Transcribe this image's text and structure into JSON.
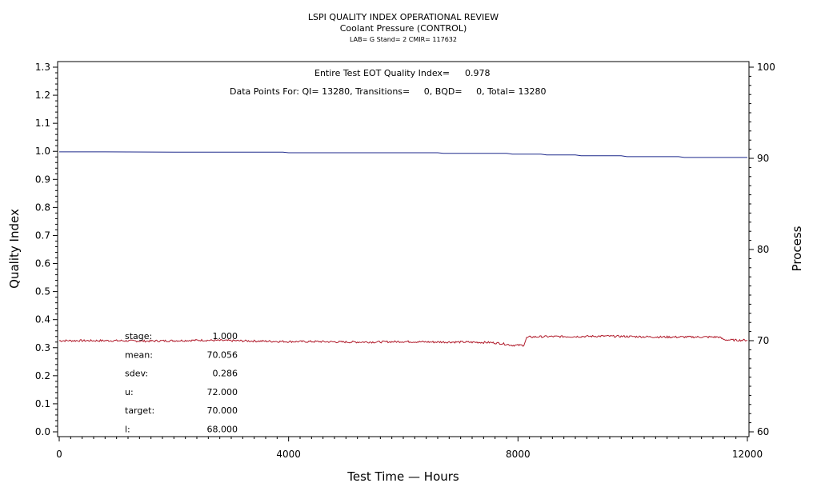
{
  "chart_data": {
    "type": "line",
    "title": "LSPI QUALITY INDEX OPERATIONAL REVIEW",
    "subtitle": "Coolant Pressure (CONTROL)",
    "subtitle2": "LAB= G Stand= 2 CMIR= 117632",
    "xlabel": "Test Time — Hours",
    "ylabel": "Quality Index",
    "y2label": "Process",
    "xlim": [
      0,
      12000
    ],
    "ylim": [
      0,
      1.3
    ],
    "y2lim": [
      60,
      100
    ],
    "x_ticks": [
      "0",
      "4000",
      "8000",
      "12000"
    ],
    "y_ticks": [
      "0.0",
      "0.1",
      "0.2",
      "0.3",
      "0.4",
      "0.5",
      "0.6",
      "0.7",
      "0.8",
      "0.9",
      "1.0",
      "1.1",
      "1.2",
      "1.3"
    ],
    "y2_ticks": [
      "60",
      "70",
      "80",
      "90",
      "100"
    ],
    "grid": false,
    "header_line1_label": "Entire Test EOT Quality Index=",
    "header_line1_value": "0.978",
    "header_line2": "Data Points For: QI= 13280, Transitions=     0, BQD=     0, Total= 13280",
    "stats": [
      {
        "label": "stage:",
        "value": "1.000"
      },
      {
        "label": "mean:",
        "value": "70.056"
      },
      {
        "label": "sdev:",
        "value": "0.286"
      },
      {
        "label": "u:",
        "value": "72.000"
      },
      {
        "label": "target:",
        "value": "70.000"
      },
      {
        "label": "l:",
        "value": "68.000"
      }
    ],
    "series": [
      {
        "axis": "left",
        "color": "#1f2a8c",
        "x": [
          0,
          800,
          2000,
          3900,
          4000,
          6600,
          6700,
          7800,
          7900,
          8400,
          8500,
          9000,
          9100,
          9800,
          9900,
          10800,
          10900,
          12000
        ],
        "y": [
          0.998,
          0.998,
          0.997,
          0.997,
          0.995,
          0.995,
          0.993,
          0.993,
          0.99,
          0.99,
          0.987,
          0.987,
          0.984,
          0.984,
          0.981,
          0.981,
          0.978,
          0.978
        ]
      },
      {
        "axis": "right",
        "color": "#b01a2a",
        "x": [
          0,
          500,
          1000,
          1500,
          2000,
          2500,
          3000,
          3500,
          4000,
          4500,
          5000,
          5500,
          6000,
          6500,
          7000,
          7500,
          7700,
          7900,
          8100,
          8150,
          8200,
          8500,
          9000,
          9500,
          10000,
          10500,
          11000,
          11500,
          11600,
          11800,
          12000
        ],
        "y": [
          70.0,
          70.0,
          70.0,
          69.95,
          70.0,
          70.05,
          70.0,
          69.95,
          69.9,
          69.9,
          69.85,
          69.85,
          69.9,
          69.85,
          69.85,
          69.8,
          69.7,
          69.5,
          69.5,
          70.3,
          70.4,
          70.45,
          70.45,
          70.5,
          70.45,
          70.4,
          70.4,
          70.4,
          70.1,
          70.05,
          70.05
        ]
      }
    ]
  }
}
